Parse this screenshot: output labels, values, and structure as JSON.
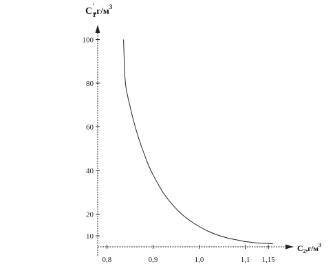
{
  "chart_data": {
    "type": "line",
    "title": "",
    "ylabel": {
      "main": "C",
      "sub": "1",
      "sup_prime": "'",
      "unit": ",г/м",
      "unit_sup": "3"
    },
    "xlabel": {
      "main": "C",
      "sub": "2",
      "unit": ",г/м",
      "unit_sup": "3"
    },
    "xlim": [
      0.78,
      1.19
    ],
    "ylim": [
      5,
      103
    ],
    "x_ticks": [
      0.8,
      0.9,
      1.0,
      1.1,
      1.15
    ],
    "x_tick_labels": [
      "0,8",
      "0,9",
      "1,0",
      "1,1",
      "1,15"
    ],
    "y_ticks": [
      10,
      20,
      40,
      60,
      80,
      100
    ],
    "y_tick_labels": [
      "10",
      "20",
      "40",
      "60",
      "80",
      "100"
    ],
    "grid": false,
    "series": [
      {
        "color": "#222222",
        "x": [
          0.836,
          0.84,
          0.85,
          0.86,
          0.87,
          0.88,
          0.89,
          0.9,
          0.92,
          0.94,
          0.96,
          0.98,
          1.0,
          1.02,
          1.04,
          1.06,
          1.08,
          1.1,
          1.12,
          1.14,
          1.16
        ],
        "y": [
          100,
          80.5,
          69.5,
          61.0,
          54.0,
          48.0,
          42.5,
          38.0,
          30.5,
          24.8,
          20.4,
          17.0,
          14.3,
          12.1,
          10.4,
          9.1,
          8.2,
          7.4,
          6.9,
          6.6,
          6.4
        ]
      }
    ]
  }
}
